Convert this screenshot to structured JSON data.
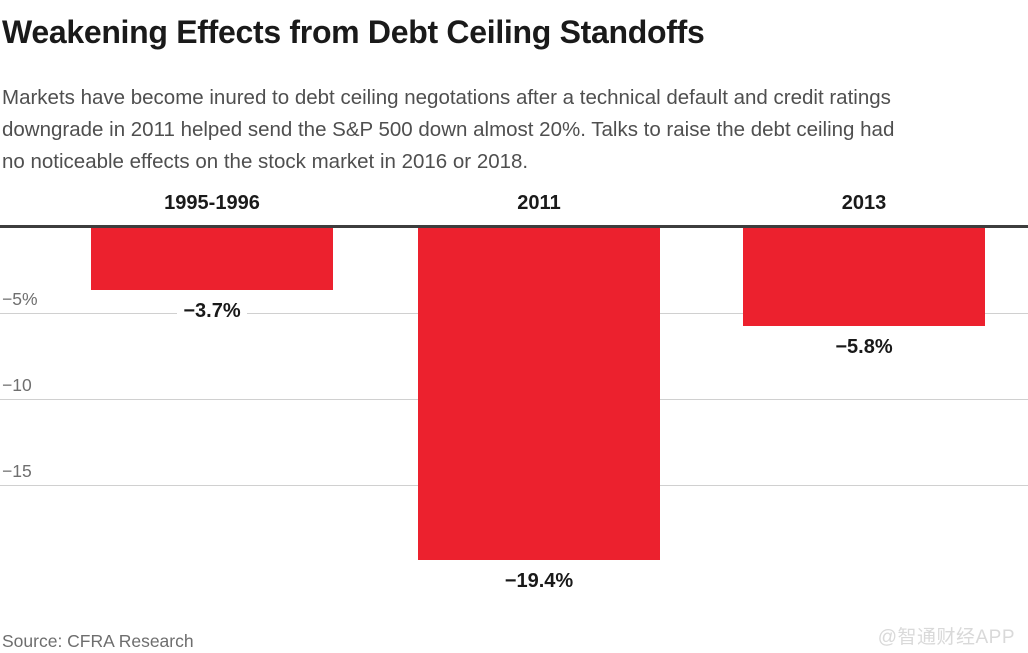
{
  "header": {
    "title": "Weakening Effects from Debt Ceiling Standoffs",
    "subtitle_lines": [
      "Markets have become inured to debt ceiling negotations after a technical default and credit ratings",
      "downgrade in 2011 helped send the S&P 500 down almost 20%. Talks to raise the debt ceiling had",
      "no noticeable effects on the stock market in 2016 or 2018."
    ]
  },
  "footer": {
    "source": "Source: CFRA Research",
    "watermark": "@智通财经APP"
  },
  "colors": {
    "bar": "#EC212E",
    "zero_line": "#3d3d3d",
    "gridline": "#d0d0d0",
    "dark_text": "#1a1a1a",
    "muted_text": "#6f6f6f",
    "watermark": "#d9d9d9"
  },
  "chart_data": {
    "type": "bar",
    "title": "Weakening Effects from Debt Ceiling Standoffs",
    "categories": [
      "1995-1996",
      "2011",
      "2013"
    ],
    "values": [
      -3.7,
      -19.4,
      -5.8
    ],
    "value_labels": [
      "−3.7%",
      "−19.4%",
      "−5.8%"
    ],
    "yticks": [
      {
        "value": -5,
        "label": "−5%"
      },
      {
        "value": -10,
        "label": "−10"
      },
      {
        "value": -15,
        "label": "−15"
      }
    ],
    "ylim": [
      0,
      -20
    ],
    "xlabel": "",
    "ylabel": "",
    "grid": true,
    "legend": false,
    "bar_color": "#EC212E"
  }
}
